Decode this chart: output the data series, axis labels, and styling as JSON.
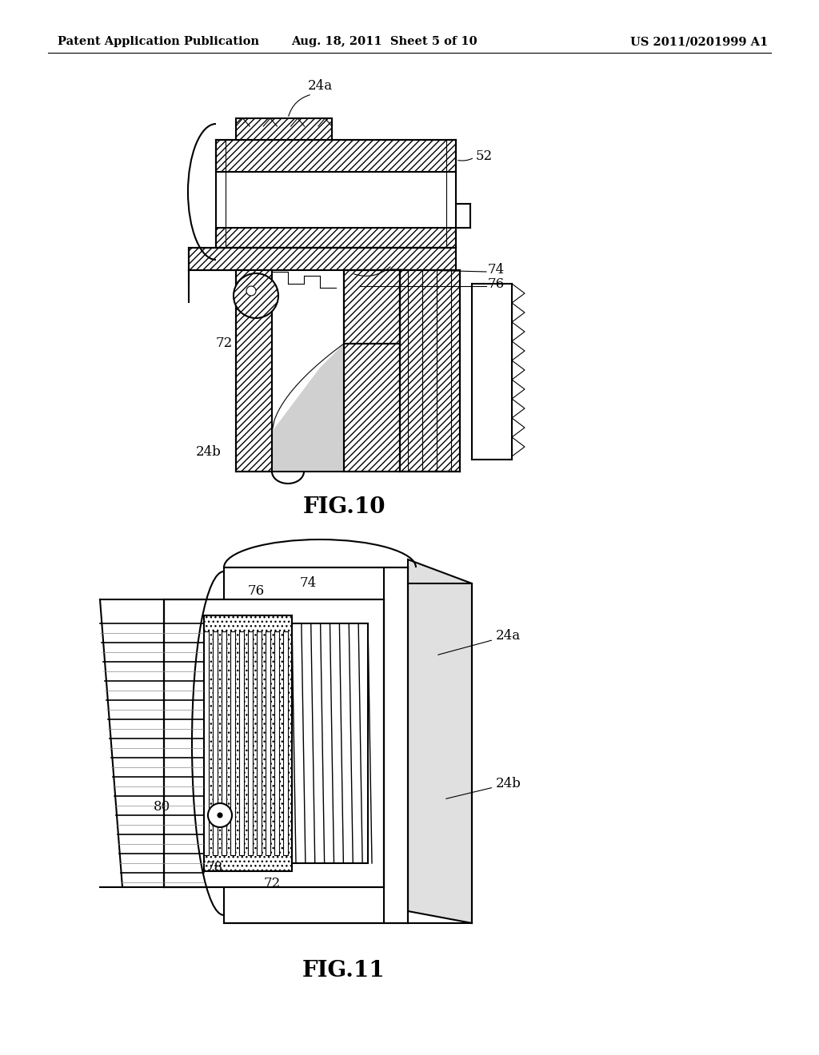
{
  "background_color": "#ffffff",
  "header_left": "Patent Application Publication",
  "header_mid": "Aug. 18, 2011  Sheet 5 of 10",
  "header_right": "US 2011/0201999 A1",
  "fig10_label": "FIG.10",
  "fig11_label": "FIG.11",
  "header_fontsize": 10.5,
  "fig_label_fontsize": 20,
  "ref_fontsize": 12,
  "line_color": "#000000"
}
